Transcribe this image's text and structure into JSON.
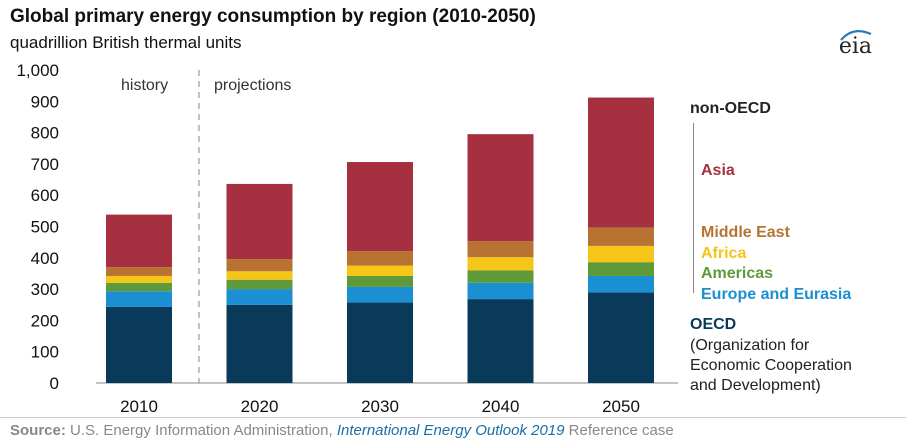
{
  "header": {
    "title": "Global primary energy consumption by region (2010-2050)",
    "subtitle": "quadrillion British thermal units",
    "logo_text": "eia"
  },
  "annotations": {
    "history": "history",
    "projections": "projections"
  },
  "legend": {
    "non_oecd": "non-OECD",
    "asia": "Asia",
    "middle_east": "Middle East",
    "africa": "Africa",
    "americas": "Americas",
    "europe_eurasia": "Europe and Eurasia",
    "oecd": "OECD",
    "oecd_line1": "(Organization for",
    "oecd_line2": "Economic Cooperation",
    "oecd_line3": "and Development)"
  },
  "source": {
    "label": "Source:",
    "text1": "U.S. Energy Information Administration,",
    "text2": "International Energy Outlook 2019",
    "text3": "Reference case"
  },
  "colors": {
    "oecd": "#0a3a5a",
    "europe_eurasia": "#1a8fd1",
    "americas": "#5e9a3a",
    "africa": "#f5c518",
    "middle_east": "#b87333",
    "asia": "#a63040"
  },
  "chart_data": {
    "type": "bar",
    "stacked": true,
    "categories": [
      "2010",
      "2020",
      "2030",
      "2040",
      "2050"
    ],
    "ylim": [
      0,
      1000
    ],
    "yticks": [
      "0",
      "100",
      "200",
      "300",
      "400",
      "500",
      "600",
      "700",
      "800",
      "900",
      "1,000"
    ],
    "xlabel": "",
    "ylabel": "",
    "series": [
      {
        "name": "OECD",
        "key": "oecd",
        "values": [
          243,
          250,
          257,
          268,
          289
        ]
      },
      {
        "name": "Europe and Eurasia",
        "key": "europe_eurasia",
        "values": [
          50,
          50,
          50,
          52,
          53
        ]
      },
      {
        "name": "Americas",
        "key": "americas",
        "values": [
          27,
          30,
          35,
          40,
          44
        ]
      },
      {
        "name": "Africa",
        "key": "africa",
        "values": [
          22,
          27,
          33,
          42,
          52
        ]
      },
      {
        "name": "Middle East",
        "key": "middle_east",
        "values": [
          28,
          39,
          46,
          51,
          59
        ]
      },
      {
        "name": "Asia",
        "key": "asia",
        "values": [
          168,
          240,
          285,
          342,
          415
        ]
      }
    ]
  }
}
